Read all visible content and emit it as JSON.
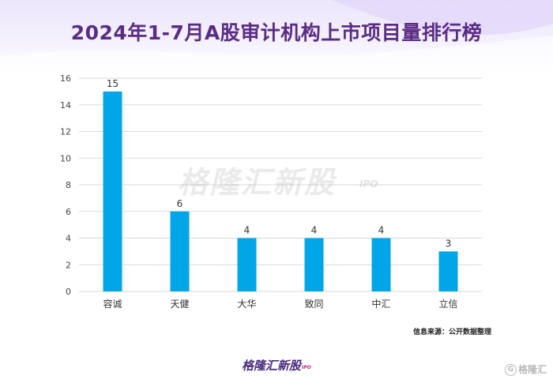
{
  "title": "2024年1-7月A股审计机构上市项目量排行榜",
  "watermark": "格隆汇新股",
  "watermark_tag": "IPO",
  "source": "信息来源：公开数据整理",
  "footer": {
    "logo": "格隆汇新股",
    "tag": "IPO"
  },
  "corner": {
    "circle": "G",
    "text": "格隆汇"
  },
  "colors": {
    "bar": "#00a6e8",
    "title": "#5b2c84",
    "grid": "#d9d9d9"
  },
  "chart_data": {
    "type": "bar",
    "categories": [
      "容诚",
      "天健",
      "大华",
      "致同",
      "中汇",
      "立信"
    ],
    "values": [
      15,
      6,
      4,
      4,
      4,
      3
    ],
    "ylim": [
      0,
      16
    ],
    "yticks": [
      0,
      2,
      4,
      6,
      8,
      10,
      12,
      14,
      16
    ],
    "grid": true,
    "data_labels": true
  }
}
